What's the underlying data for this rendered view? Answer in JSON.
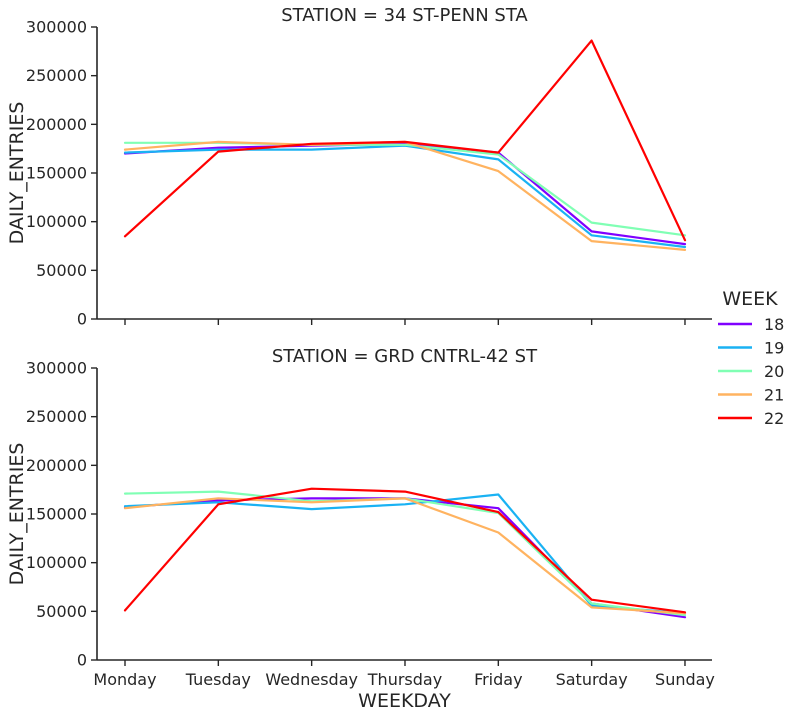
{
  "chart_data": [
    {
      "type": "line",
      "title": "STATION = 34 ST-PENN STA",
      "xlabel": "",
      "ylabel": "DAILY_ENTRIES",
      "categories": [
        "Monday",
        "Tuesday",
        "Wednesday",
        "Thursday",
        "Friday",
        "Saturday",
        "Sunday"
      ],
      "ylim": [
        0,
        300000
      ],
      "yticks": [
        "0",
        "50000",
        "100000",
        "150000",
        "200000",
        "250000",
        "300000"
      ],
      "show_xtick_labels": false,
      "series": [
        {
          "name": "18",
          "color": "#8000ff",
          "values": [
            170000,
            176000,
            178000,
            180000,
            171000,
            90000,
            77000
          ]
        },
        {
          "name": "19",
          "color": "#1ab2f3",
          "values": [
            171000,
            174000,
            174000,
            178000,
            164000,
            86000,
            74000
          ]
        },
        {
          "name": "20",
          "color": "#80ffb4",
          "values": [
            181000,
            181000,
            179000,
            179000,
            169000,
            99000,
            86000
          ]
        },
        {
          "name": "21",
          "color": "#ffb360",
          "values": [
            174000,
            182000,
            179000,
            182000,
            152000,
            80000,
            71000
          ]
        },
        {
          "name": "22",
          "color": "#ff0000",
          "values": [
            85000,
            172000,
            180000,
            182000,
            171000,
            286000,
            81000
          ]
        }
      ]
    },
    {
      "type": "line",
      "title": "STATION = GRD CNTRL-42 ST",
      "xlabel": "WEEKDAY",
      "ylabel": "DAILY_ENTRIES",
      "categories": [
        "Monday",
        "Tuesday",
        "Wednesday",
        "Thursday",
        "Friday",
        "Saturday",
        "Sunday"
      ],
      "ylim": [
        0,
        300000
      ],
      "yticks": [
        "0",
        "50000",
        "100000",
        "150000",
        "200000",
        "250000",
        "300000"
      ],
      "show_xtick_labels": true,
      "series": [
        {
          "name": "18",
          "color": "#8000ff",
          "values": [
            157000,
            164000,
            166000,
            166000,
            156000,
            58000,
            44000
          ]
        },
        {
          "name": "19",
          "color": "#1ab2f3",
          "values": [
            158000,
            162000,
            155000,
            160000,
            170000,
            56000,
            48000
          ]
        },
        {
          "name": "20",
          "color": "#80ffb4",
          "values": [
            171000,
            173000,
            163000,
            166000,
            151000,
            58000,
            46000
          ]
        },
        {
          "name": "21",
          "color": "#ffb360",
          "values": [
            156000,
            166000,
            162000,
            166000,
            131000,
            54000,
            48000
          ]
        },
        {
          "name": "22",
          "color": "#ff0000",
          "values": [
            51000,
            160000,
            176000,
            173000,
            152000,
            62000,
            49000
          ]
        }
      ]
    }
  ],
  "legend": {
    "title": "WEEK",
    "items": [
      {
        "label": "18",
        "color": "#8000ff"
      },
      {
        "label": "19",
        "color": "#1ab2f3"
      },
      {
        "label": "20",
        "color": "#80ffb4"
      },
      {
        "label": "21",
        "color": "#ffb360"
      },
      {
        "label": "22",
        "color": "#ff0000"
      }
    ],
    "placement": "center-right"
  }
}
